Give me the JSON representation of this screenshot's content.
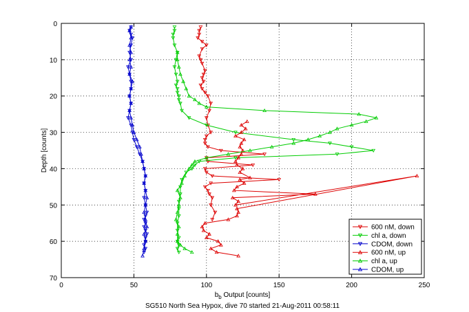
{
  "chart_data": {
    "type": "line",
    "title": "",
    "xlabel_base": "b",
    "xlabel_sub": "b",
    "xlabel_rest": " Output [counts]",
    "ylabel": "Depth [counts]",
    "caption": "SG510 North Sea Hypox, dive 70 started 21-Aug-2011 00:58:11",
    "xlim": [
      0,
      250
    ],
    "ylim": [
      0,
      70
    ],
    "y_reversed": true,
    "xticks": [
      0,
      50,
      100,
      150,
      200,
      250
    ],
    "yticks": [
      0,
      10,
      20,
      30,
      40,
      50,
      60,
      70
    ],
    "grid": true,
    "legend_position": "bottom-right",
    "series": [
      {
        "name": "600 nM, down",
        "color": "#dd0000",
        "marker": "triangle-down",
        "x": [
          96,
          95,
          95,
          94,
          97,
          100,
          97,
          95,
          96,
          97,
          99,
          98,
          97,
          98,
          96,
          97,
          99,
          101,
          103,
          102,
          100,
          101,
          103,
          100,
          99,
          99,
          101,
          110,
          140,
          100,
          101,
          132,
          99,
          100,
          104,
          150,
          103,
          99,
          101,
          102,
          104,
          103,
          106,
          104
        ],
        "y": [
          1,
          2,
          3,
          4,
          5,
          6,
          7,
          9,
          10,
          11,
          13,
          14,
          15,
          16,
          17,
          18,
          19,
          20,
          22,
          24,
          26,
          28,
          30,
          31,
          32,
          33,
          34,
          35,
          36,
          37,
          38,
          39,
          40,
          41,
          42,
          43,
          44,
          45,
          46,
          47,
          48,
          50,
          52,
          54
        ]
      },
      {
        "name": "chl a, down",
        "color": "#00cc00",
        "marker": "triangle-down",
        "x": [
          78,
          78,
          77,
          77,
          78,
          80,
          79,
          78,
          79,
          80,
          79,
          80,
          80,
          81,
          81,
          82,
          83,
          88,
          100,
          120,
          160,
          185,
          200,
          215,
          190,
          120,
          95,
          92,
          90,
          86,
          83,
          82,
          82,
          81,
          81,
          81,
          80,
          80,
          81,
          80,
          81,
          80,
          81
        ],
        "y": [
          1,
          2,
          3,
          4,
          6,
          8,
          10,
          12,
          14,
          16,
          17,
          18,
          19,
          20,
          21,
          22,
          24,
          26,
          28,
          30,
          32,
          33,
          34,
          35,
          36,
          37,
          38,
          39,
          40,
          41,
          43,
          45,
          47,
          49,
          51,
          53,
          55,
          57,
          59,
          60,
          61,
          62,
          63
        ]
      },
      {
        "name": "CDOM, down",
        "color": "#0000cc",
        "marker": "triangle-down",
        "x": [
          48,
          47,
          48,
          49,
          48,
          47,
          48,
          46,
          47,
          48,
          48,
          47,
          48,
          47,
          46,
          48,
          49,
          50,
          52,
          54,
          56,
          57,
          58,
          57,
          58,
          57,
          58,
          59,
          58,
          57,
          58,
          57,
          58,
          59,
          58,
          58,
          57,
          58,
          57
        ],
        "y": [
          1,
          2,
          3,
          4,
          6,
          8,
          10,
          12,
          14,
          16,
          18,
          20,
          22,
          24,
          26,
          28,
          30,
          32,
          34,
          36,
          38,
          40,
          42,
          44,
          46,
          48,
          50,
          52,
          53,
          54,
          55,
          56,
          57,
          58,
          59,
          60,
          61,
          62,
          63
        ]
      },
      {
        "name": "600 nM, up",
        "color": "#dd0000",
        "marker": "triangle-up",
        "x": [
          122,
          107,
          103,
          110,
          108,
          100,
          102,
          98,
          97,
          99,
          115,
          121,
          122,
          121,
          245,
          120,
          122,
          118,
          175,
          119,
          121,
          126,
          123,
          130,
          123,
          125,
          121,
          120,
          122,
          124,
          125,
          123,
          124,
          126,
          120,
          124,
          127,
          124,
          128
        ],
        "y": [
          64,
          63,
          62,
          61,
          60,
          59,
          58,
          57,
          56,
          55,
          54,
          53,
          52,
          51,
          42,
          50,
          49,
          48,
          47,
          46,
          45,
          44,
          43,
          42.5,
          41,
          40,
          39,
          38,
          37,
          36,
          35,
          34,
          33,
          32,
          31,
          30,
          29,
          28,
          27
        ]
      },
      {
        "name": "chl a, up",
        "color": "#00cc00",
        "marker": "triangle-up",
        "x": [
          90,
          85,
          82,
          80,
          80,
          81,
          79,
          80,
          81,
          82,
          80,
          83,
          85,
          88,
          90,
          92,
          100,
          115,
          130,
          145,
          160,
          170,
          178,
          185,
          190,
          200,
          210,
          217,
          205,
          140,
          100,
          95,
          92,
          88,
          86,
          84,
          82,
          81,
          80,
          80
        ],
        "y": [
          63,
          62,
          61,
          60,
          58,
          56,
          54,
          52,
          50,
          48,
          46,
          44,
          42,
          40,
          39,
          38,
          37,
          36,
          35,
          34,
          33,
          32,
          31,
          30,
          29,
          28,
          27,
          26,
          25,
          24,
          23,
          22,
          21,
          20,
          18,
          16,
          14,
          12,
          10,
          8
        ]
      },
      {
        "name": "CDOM, up",
        "color": "#0000cc",
        "marker": "triangle-up",
        "x": [
          56,
          57,
          58,
          57,
          59,
          58,
          57,
          58,
          59,
          58,
          57,
          58,
          57,
          56,
          55,
          54,
          52,
          50,
          49,
          48,
          47,
          48,
          47,
          48,
          49,
          47,
          48,
          47,
          48,
          47,
          48,
          47,
          48
        ],
        "y": [
          64,
          62,
          60,
          58,
          56,
          54,
          52,
          50,
          48,
          46,
          44,
          42,
          40,
          38,
          36,
          34,
          32,
          30,
          28,
          26,
          24,
          22,
          20,
          18,
          16,
          14,
          12,
          10,
          8,
          6,
          4,
          2,
          1
        ]
      }
    ]
  }
}
